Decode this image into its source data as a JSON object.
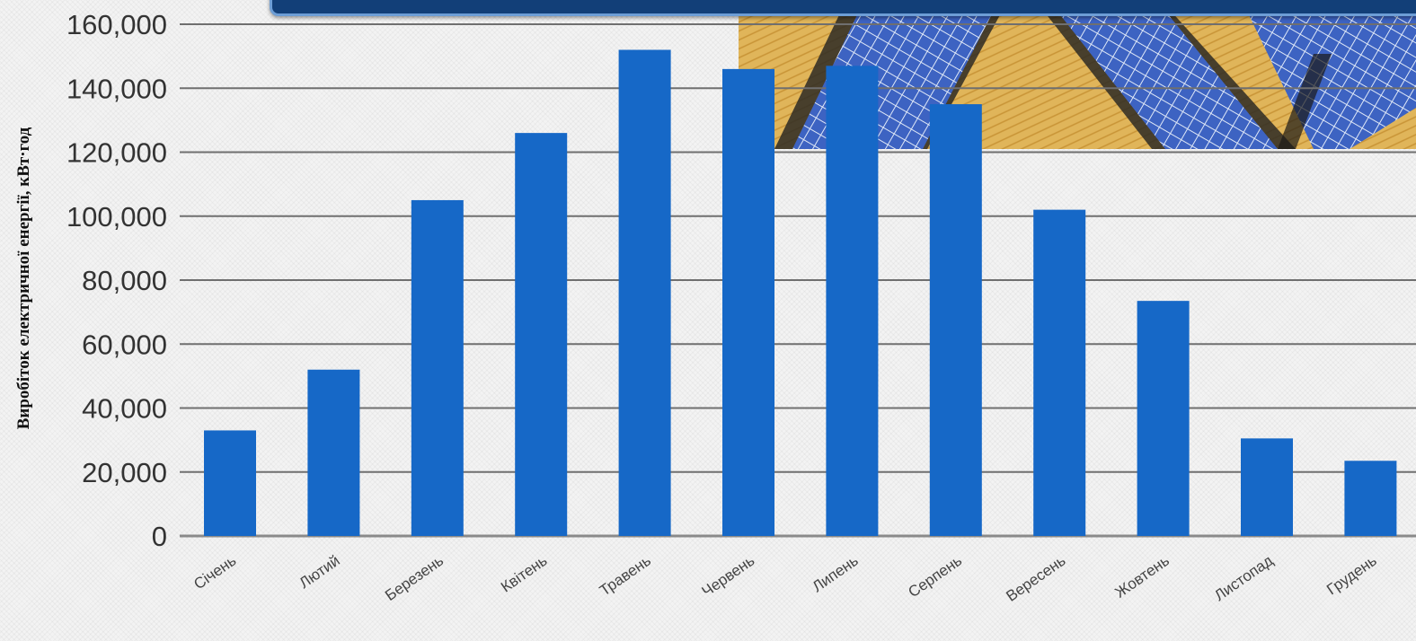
{
  "chart_data": {
    "type": "bar",
    "ylabel": "Виробіток електричної енергії, кВт·год",
    "xlabel": "",
    "ylim": [
      0,
      160000
    ],
    "yticks": [
      0,
      20000,
      40000,
      60000,
      80000,
      100000,
      120000,
      140000,
      160000
    ],
    "ytick_labels": [
      "0",
      "20,000",
      "40,000",
      "60,000",
      "80,000",
      "100,000",
      "120,000",
      "140,000",
      "160,000"
    ],
    "grid": true,
    "bar_color": "#1668c7",
    "categories": [
      "Січень",
      "Лютий",
      "Березень",
      "Квітень",
      "Травень",
      "Червень",
      "Липень",
      "Серпень",
      "Вересень",
      "Жовтень",
      "Листопад",
      "Грудень"
    ],
    "values": [
      33000,
      52000,
      105000,
      126000,
      152000,
      146000,
      147000,
      135000,
      102000,
      73500,
      30500,
      23500
    ]
  }
}
